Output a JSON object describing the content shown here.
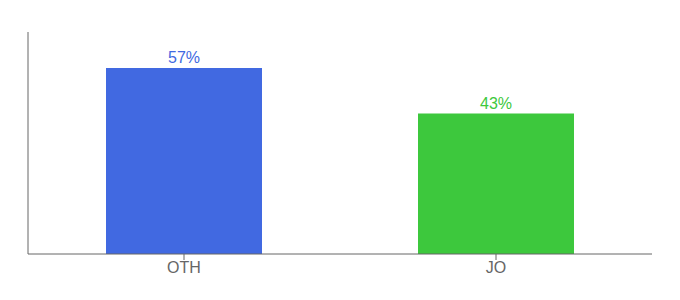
{
  "chart_data": {
    "type": "bar",
    "categories": [
      "OTH",
      "JO"
    ],
    "values": [
      57,
      43
    ],
    "value_labels": [
      "57%",
      "43%"
    ],
    "colors": [
      "#4169e1",
      "#3dc83d"
    ],
    "ylim": [
      0,
      68
    ],
    "data_labels": true,
    "tick_labels": "x",
    "grid": false
  }
}
